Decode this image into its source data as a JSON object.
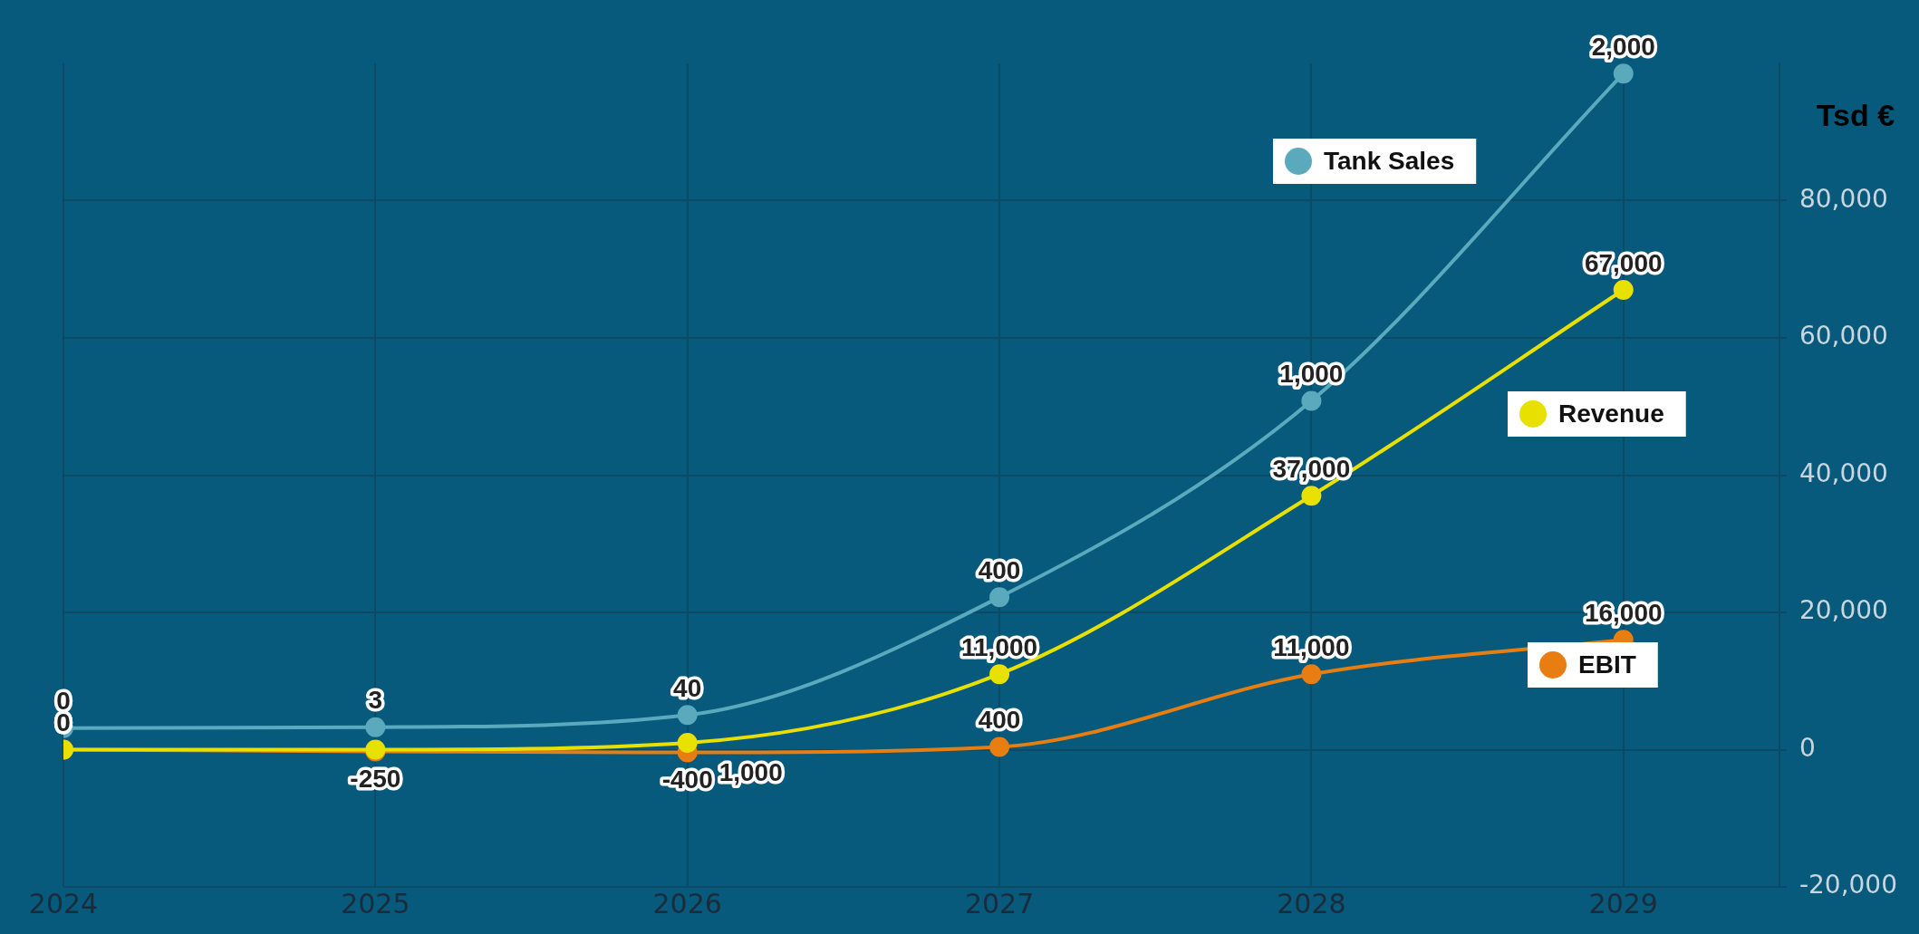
{
  "chart_data": {
    "type": "line",
    "ylabel": "Tsd €",
    "x": [
      2024,
      2025,
      2026,
      2027,
      2028,
      2029
    ],
    "xlim": [
      2024,
      2029.5
    ],
    "xticks": [
      2024,
      2025,
      2026,
      2027,
      2028,
      2029
    ],
    "ylim": [
      -20000,
      100000
    ],
    "yticks": [
      {
        "value": -20000,
        "label": "-20,000"
      },
      0,
      {
        "value": 20000,
        "label": "20,000"
      },
      {
        "value": 40000,
        "label": "40,000"
      },
      {
        "value": 60000,
        "label": "60,000"
      },
      {
        "value": 80000,
        "label": "80,000"
      }
    ],
    "y2lim": [
      -485,
      2031
    ],
    "grid": true,
    "legend": "right",
    "marker": "circle",
    "line_style": "solid",
    "tick_labels": "xy",
    "series": [
      {
        "name": "Tank Sales",
        "color": "#5aa9bd",
        "axis": "y2",
        "values": [
          0,
          3,
          40,
          400,
          1000,
          2000
        ],
        "value_labels": [
          "0",
          "3",
          "40",
          "400",
          "1,000",
          "2,000"
        ]
      },
      {
        "name": "Revenue",
        "color": "#e8e000",
        "values": [
          0,
          0,
          1000,
          11000,
          37000,
          67000
        ],
        "value_labels": [
          "0",
          null,
          "1,000",
          "11,000",
          "37,000",
          "67,000"
        ]
      },
      {
        "name": "EBIT",
        "color": "#e87e12",
        "values": [
          0,
          -250,
          -400,
          400,
          11000,
          16000
        ],
        "value_labels": [
          "0",
          "-250",
          "-400",
          "400",
          "11,000",
          "16,000"
        ]
      }
    ]
  }
}
